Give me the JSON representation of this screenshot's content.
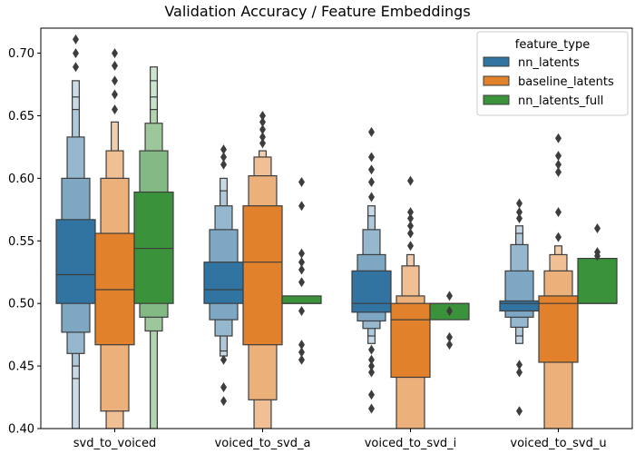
{
  "chart_data": {
    "type": "boxen",
    "title": "Validation Accuracy / Feature Embeddings",
    "xlabel": "",
    "ylabel": "",
    "ylim": [
      0.4,
      0.72
    ],
    "yticks": [
      "0.40",
      "0.45",
      "0.50",
      "0.55",
      "0.60",
      "0.65",
      "0.70"
    ],
    "categories": [
      "svd_to_voiced",
      "voiced_to_svd_a",
      "voiced_to_svd_i",
      "voiced_to_svd_u"
    ],
    "legend": {
      "title": "feature_type",
      "position": "top-right"
    },
    "series": [
      {
        "name": "nn_latents",
        "color": "#3274a1",
        "groups": [
          {
            "median": 0.523,
            "levels": [
              [
                0.5,
                0.567
              ],
              [
                0.477,
                0.6
              ],
              [
                0.46,
                0.633
              ],
              [
                0.45,
                0.655
              ],
              [
                0.44,
                0.665
              ],
              [
                0.4,
                0.678
              ]
            ],
            "outliers": [
              0.689,
              0.7,
              0.711
            ]
          },
          {
            "median": 0.511,
            "levels": [
              [
                0.5,
                0.533
              ],
              [
                0.487,
                0.559
              ],
              [
                0.474,
                0.578
              ],
              [
                0.462,
                0.59
              ],
              [
                0.458,
                0.6
              ]
            ],
            "outliers": [
              0.611,
              0.617,
              0.623,
              0.455,
              0.433,
              0.422
            ]
          },
          {
            "median": 0.5,
            "levels": [
              [
                0.493,
                0.526
              ],
              [
                0.486,
                0.539
              ],
              [
                0.48,
                0.559
              ],
              [
                0.474,
                0.57
              ],
              [
                0.468,
                0.578
              ]
            ],
            "outliers": [
              0.585,
              0.597,
              0.607,
              0.617,
              0.637,
              0.463,
              0.455,
              0.45,
              0.445,
              0.427,
              0.416
            ]
          },
          {
            "median": 0.5,
            "levels": [
              [
                0.494,
                0.502
              ],
              [
                0.489,
                0.526
              ],
              [
                0.481,
                0.547
              ],
              [
                0.474,
                0.556
              ],
              [
                0.468,
                0.562
              ]
            ],
            "outliers": [
              0.568,
              0.573,
              0.58,
              0.451,
              0.445,
              0.414
            ]
          }
        ]
      },
      {
        "name": "baseline_latents",
        "color": "#e1812c",
        "groups": [
          {
            "median": 0.511,
            "levels": [
              [
                0.467,
                0.556
              ],
              [
                0.414,
                0.6
              ],
              [
                0.4,
                0.622
              ],
              [
                0.4,
                0.645
              ]
            ],
            "outliers": [
              0.655,
              0.667,
              0.678,
              0.69,
              0.7
            ]
          },
          {
            "median": 0.533,
            "levels": [
              [
                0.467,
                0.578
              ],
              [
                0.423,
                0.602
              ],
              [
                0.4,
                0.617
              ],
              [
                0.4,
                0.622
              ]
            ],
            "outliers": [
              0.628,
              0.633,
              0.639,
              0.645,
              0.65
            ]
          },
          {
            "median": 0.487,
            "levels": [
              [
                0.441,
                0.5
              ],
              [
                0.4,
                0.506
              ],
              [
                0.4,
                0.53
              ],
              [
                0.4,
                0.539
              ]
            ],
            "outliers": [
              0.546,
              0.556,
              0.562,
              0.568,
              0.573,
              0.598
            ]
          },
          {
            "median": 0.5,
            "levels": [
              [
                0.453,
                0.506
              ],
              [
                0.4,
                0.526
              ],
              [
                0.4,
                0.539
              ],
              [
                0.4,
                0.546
              ]
            ],
            "outliers": [
              0.553,
              0.573,
              0.605,
              0.611,
              0.618,
              0.632
            ]
          }
        ]
      },
      {
        "name": "nn_latents_full",
        "color": "#3a923a",
        "groups": [
          {
            "median": 0.544,
            "levels": [
              [
                0.5,
                0.589
              ],
              [
                0.489,
                0.622
              ],
              [
                0.478,
                0.644
              ],
              [
                0.4,
                0.655
              ],
              [
                0.4,
                0.665
              ],
              [
                0.4,
                0.678
              ],
              [
                0.4,
                0.689
              ]
            ],
            "outliers": []
          },
          {
            "median": 0.5,
            "levels": [
              [
                0.5,
                0.506
              ]
            ],
            "outliers": [
              0.597,
              0.578,
              0.54,
              0.533,
              0.527,
              0.517,
              0.494,
              0.467,
              0.461,
              0.455
            ]
          },
          {
            "median": 0.5,
            "levels": [
              [
                0.487,
                0.5
              ]
            ],
            "outliers": [
              0.506,
              0.494,
              0.473,
              0.467
            ]
          },
          {
            "median": 0.5,
            "levels": [
              [
                0.5,
                0.536
              ]
            ],
            "outliers": [
              0.56,
              0.541,
              0.538
            ]
          }
        ]
      }
    ]
  }
}
